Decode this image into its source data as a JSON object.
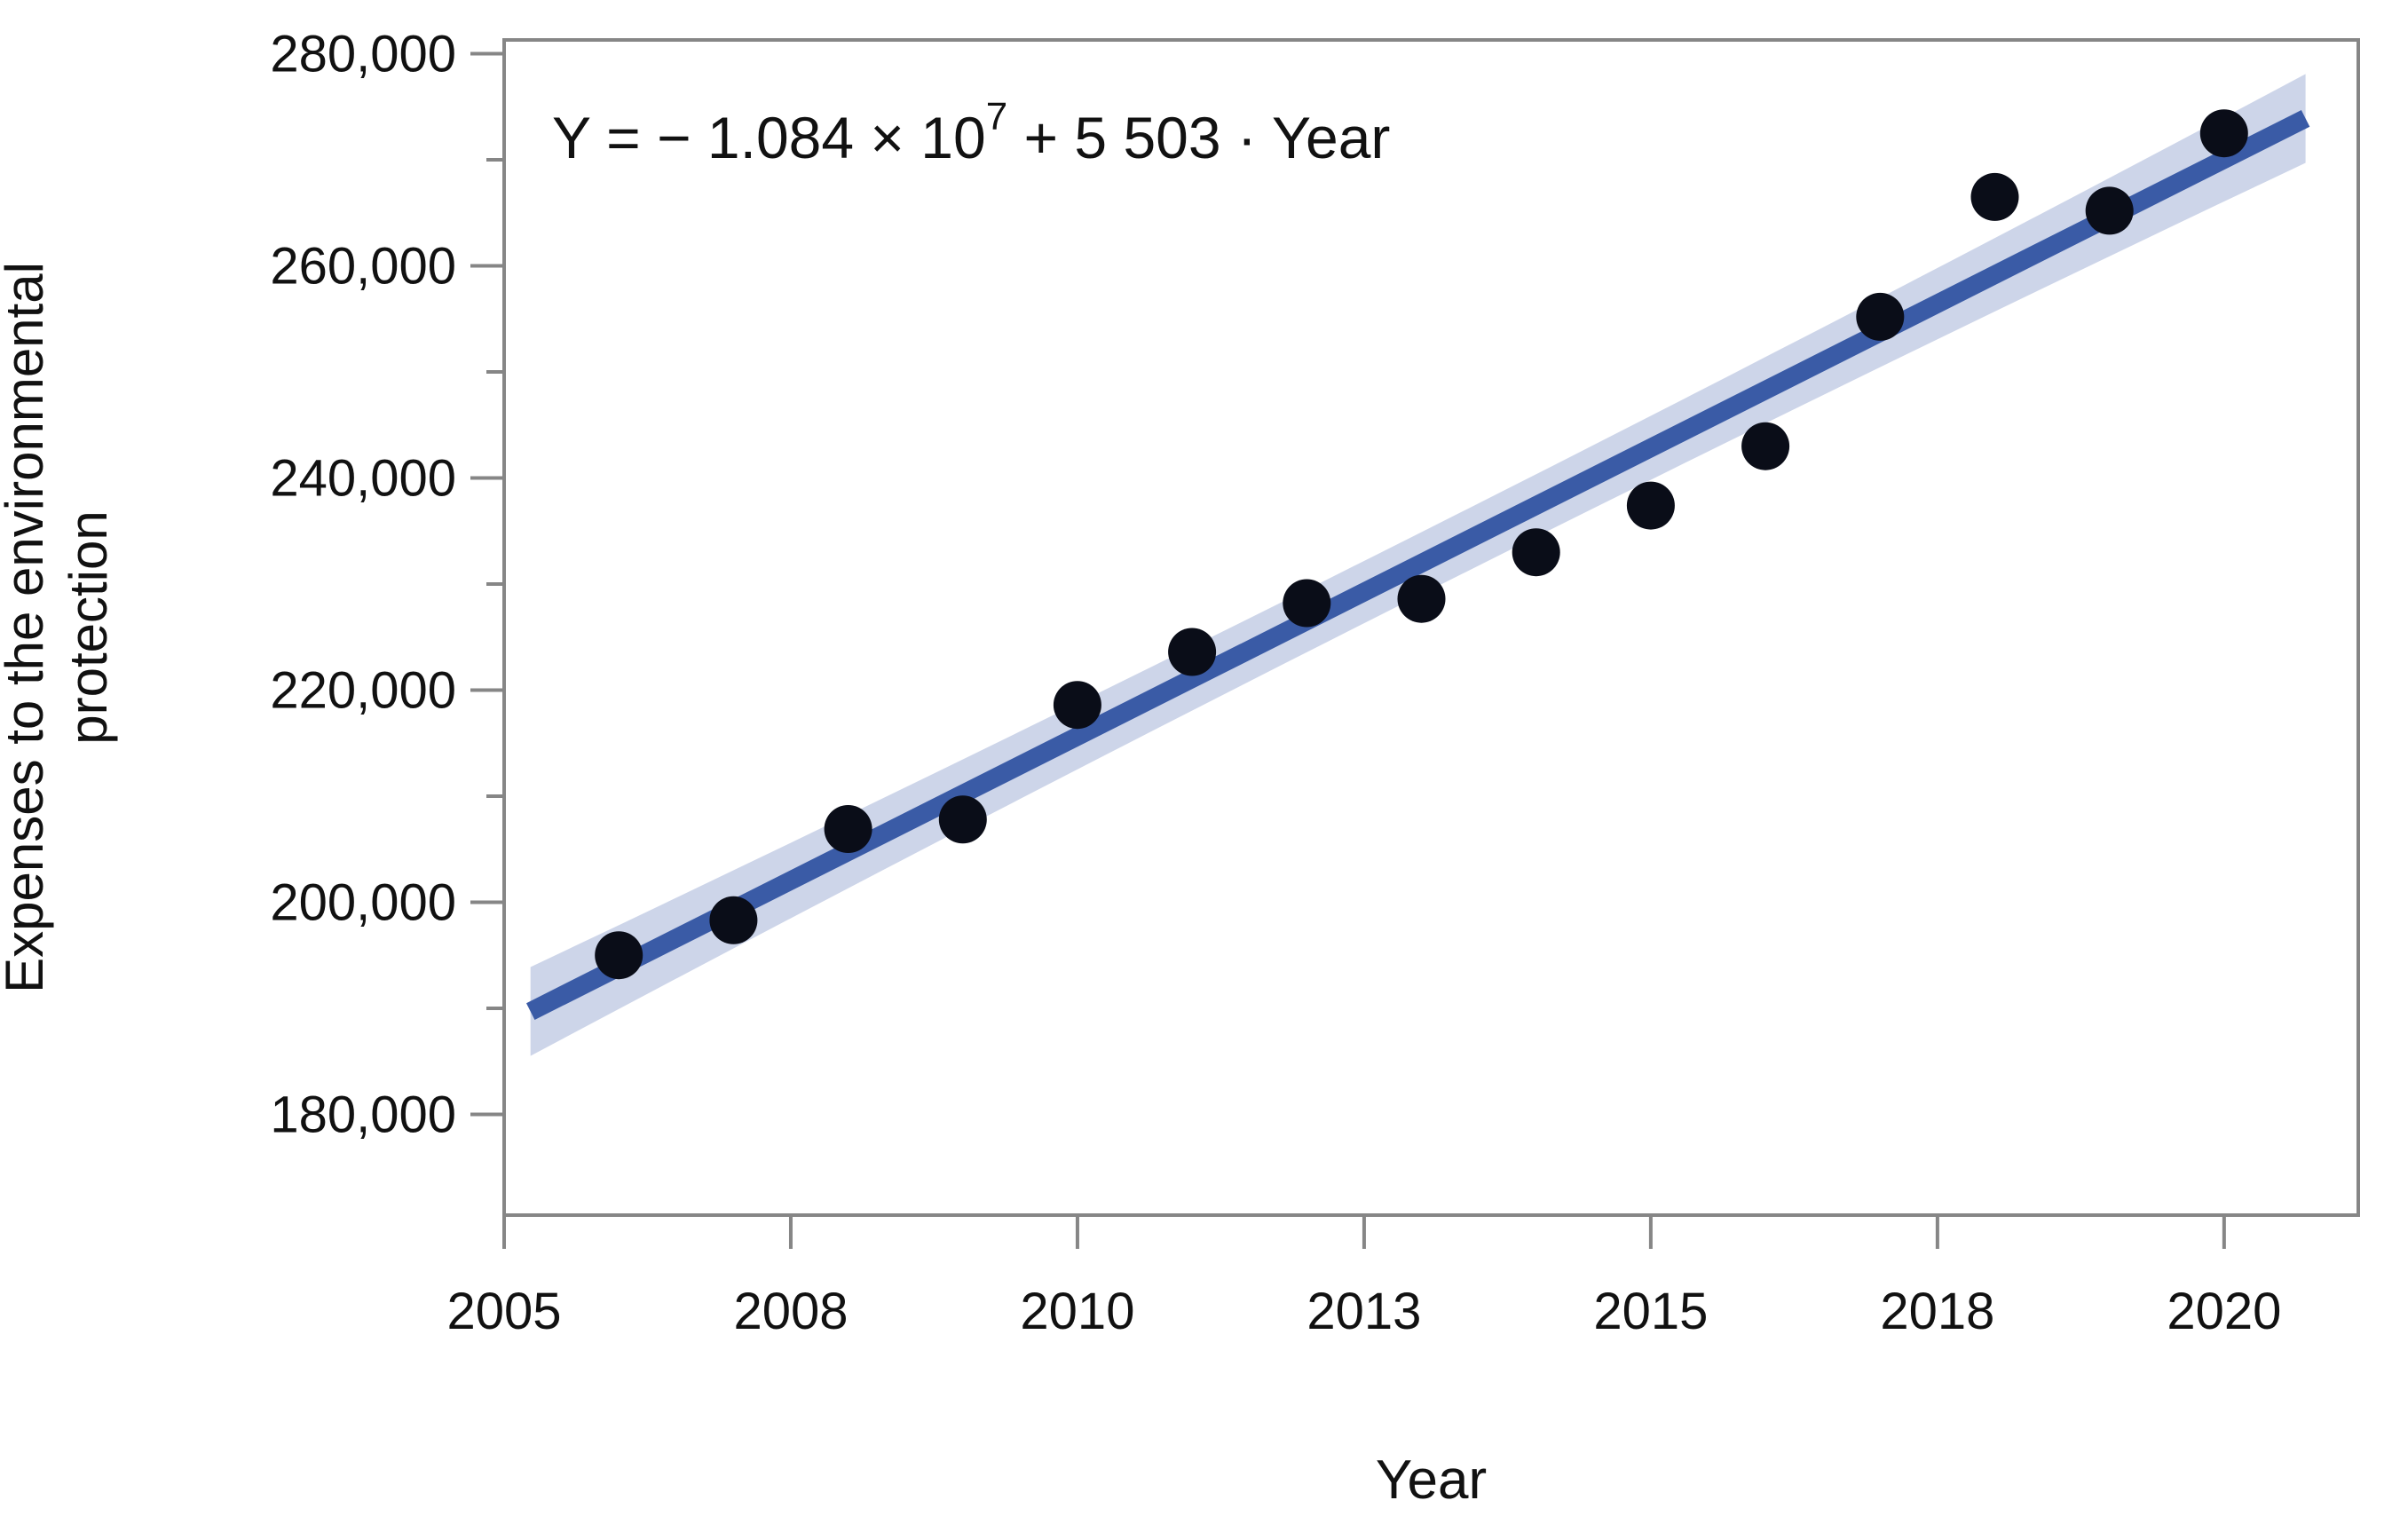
{
  "chart_data": {
    "type": "scatter",
    "title": "",
    "equation": {
      "prefix": "Y = − 1.084 × 10",
      "exponent": "7",
      "suffix": " + 5 503 · Year"
    },
    "xlabel": "Year",
    "ylabel_lines": [
      "Expenses to the environmental",
      "protection"
    ],
    "series": [
      {
        "name": "Expenses to the environmental protection",
        "x": [
          2006,
          2007,
          2008,
          2009,
          2010,
          2011,
          2012,
          2013,
          2014,
          2015,
          2016,
          2017,
          2018,
          2019,
          2020
        ],
        "y": [
          195000,
          198300,
          206900,
          207800,
          218600,
          223600,
          228200,
          228600,
          233000,
          237400,
          243000,
          255200,
          266500,
          265200,
          272500
        ]
      }
    ],
    "xlim": [
      2005,
      2021.17
    ],
    "ylim": [
      170500,
      281300
    ],
    "grid": false,
    "legend": "none",
    "x_ticks": [
      {
        "value": 2005,
        "label": "2005"
      },
      {
        "value": 2007.5,
        "label": "2008"
      },
      {
        "value": 2010,
        "label": "2010"
      },
      {
        "value": 2012.5,
        "label": "2013"
      },
      {
        "value": 2015,
        "label": "2015"
      },
      {
        "value": 2017.5,
        "label": "2018"
      },
      {
        "value": 2020,
        "label": "2020"
      }
    ],
    "y_major_ticks": [
      {
        "value": 280000,
        "label": "280,000"
      },
      {
        "value": 260000,
        "label": "260,000"
      },
      {
        "value": 240000,
        "label": "240,000"
      },
      {
        "value": 220000,
        "label": "220,000"
      },
      {
        "value": 200000,
        "label": "200,000"
      },
      {
        "value": 180000,
        "label": "180,000"
      }
    ],
    "y_minor_ticks": [
      270000,
      250000,
      230000,
      210000,
      190000
    ],
    "regression_line": {
      "x1": 2005.23,
      "y1": 189700,
      "x2": 2020.71,
      "y2": 273900
    },
    "confidence_band": {
      "half_width_end": 4190,
      "half_width_mid": 2930
    },
    "colors": {
      "point": "#0a0d18",
      "line": "#3a5ba6",
      "band": "#cdd5e9",
      "axis": "#868686",
      "text": "#111111"
    }
  }
}
